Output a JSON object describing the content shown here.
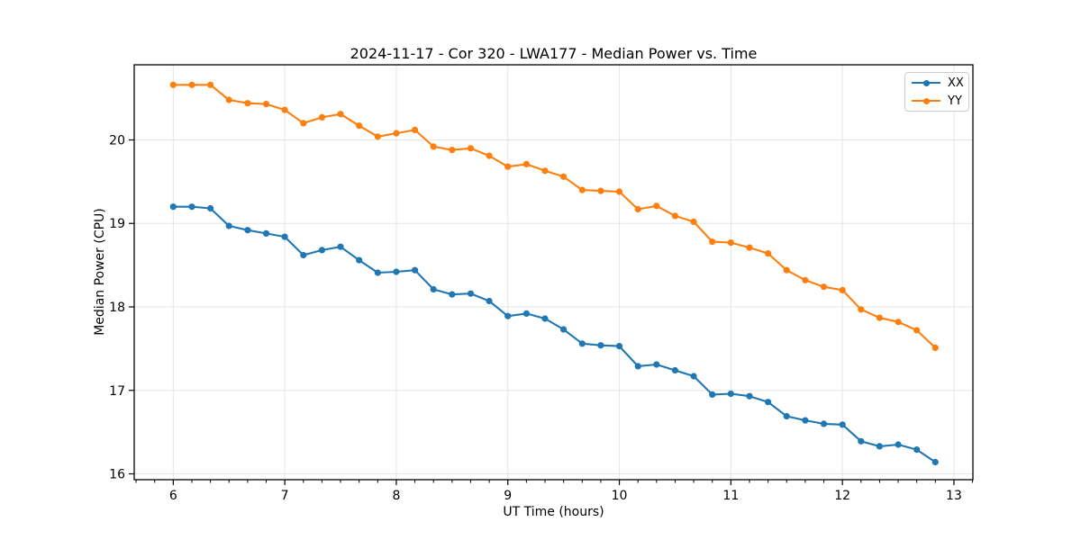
{
  "chart_data": {
    "type": "line",
    "title": "2024-11-17 - Cor 320 - LWA177 - Median Power vs. Time",
    "xlabel": "UT Time (hours)",
    "ylabel": "Median Power (CPU)",
    "xlim": [
      5.65,
      13.17
    ],
    "ylim": [
      15.93,
      20.9
    ],
    "x_ticks": [
      6,
      7,
      8,
      9,
      10,
      11,
      12,
      13
    ],
    "y_ticks": [
      16,
      17,
      18,
      19,
      20
    ],
    "x_minor_tick_step_per_hour": 6,
    "grid": true,
    "grid_color": "#e5e5e5",
    "legend_position": "upper right",
    "marker": "o",
    "x": [
      6.0,
      6.167,
      6.333,
      6.5,
      6.667,
      6.833,
      7.0,
      7.167,
      7.333,
      7.5,
      7.667,
      7.833,
      8.0,
      8.167,
      8.333,
      8.5,
      8.667,
      8.833,
      9.0,
      9.167,
      9.333,
      9.5,
      9.667,
      9.833,
      10.0,
      10.167,
      10.333,
      10.5,
      10.667,
      10.833,
      11.0,
      11.167,
      11.333,
      11.5,
      11.667,
      11.833,
      12.0,
      12.167,
      12.333,
      12.5,
      12.667,
      12.833
    ],
    "series": [
      {
        "name": "XX",
        "color": "#1f77b4",
        "values": [
          19.2,
          19.2,
          19.18,
          18.97,
          18.92,
          18.88,
          18.84,
          18.62,
          18.68,
          18.72,
          18.56,
          18.41,
          18.42,
          18.44,
          18.21,
          18.15,
          18.16,
          18.07,
          17.89,
          17.92,
          17.86,
          17.73,
          17.56,
          17.54,
          17.53,
          17.29,
          17.31,
          17.24,
          17.17,
          16.95,
          16.96,
          16.93,
          16.86,
          16.69,
          16.64,
          16.6,
          16.59,
          16.39,
          16.33,
          16.35,
          16.29,
          16.14
        ]
      },
      {
        "name": "YY",
        "color": "#ff7f0e",
        "values": [
          20.66,
          20.66,
          20.66,
          20.48,
          20.44,
          20.43,
          20.36,
          20.2,
          20.27,
          20.31,
          20.17,
          20.04,
          20.08,
          20.12,
          19.92,
          19.88,
          19.9,
          19.81,
          19.68,
          19.71,
          19.63,
          19.56,
          19.4,
          19.39,
          19.38,
          19.17,
          19.21,
          19.09,
          19.02,
          18.78,
          18.77,
          18.71,
          18.64,
          18.44,
          18.32,
          18.24,
          18.2,
          17.97,
          17.87,
          17.82,
          17.72,
          17.51
        ]
      }
    ]
  }
}
